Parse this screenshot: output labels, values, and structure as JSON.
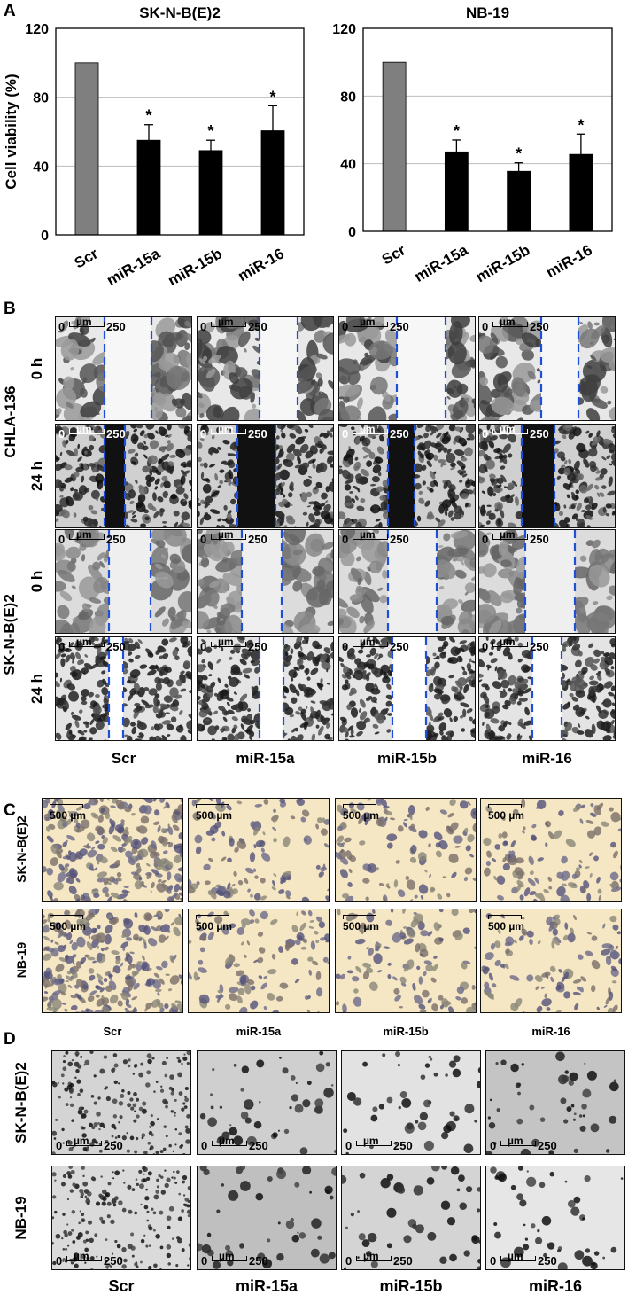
{
  "panels": {
    "A": "A",
    "B": "B",
    "C": "C",
    "D": "D"
  },
  "chart_data": [
    {
      "type": "bar",
      "title": "SK-N-B(E)2",
      "ylabel": "Cell viability (%)",
      "categories": [
        "Scr",
        "miR-15a",
        "miR-15b",
        "miR-16"
      ],
      "values": [
        100,
        55,
        49,
        60.5
      ],
      "errors": [
        0,
        9,
        6,
        14.5
      ],
      "significance": [
        "",
        "*",
        "*",
        "*"
      ],
      "yticks": [
        0,
        40,
        80,
        120
      ],
      "ylim": [
        0,
        120
      ],
      "colors": [
        "#7f7f7f",
        "#000000",
        "#000000",
        "#000000"
      ],
      "grid": true
    },
    {
      "type": "bar",
      "title": "NB-19",
      "ylabel": "",
      "categories": [
        "Scr",
        "miR-15a",
        "miR-15b",
        "miR-16"
      ],
      "values": [
        100,
        47,
        35.5,
        45.5
      ],
      "errors": [
        0,
        7,
        5,
        12
      ],
      "significance": [
        "",
        "*",
        "*",
        "*"
      ],
      "yticks": [
        0,
        40,
        80,
        120
      ],
      "ylim": [
        0,
        120
      ],
      "colors": [
        "#7f7f7f",
        "#000000",
        "#000000",
        "#000000"
      ],
      "grid": true
    }
  ],
  "panelB": {
    "cell_lines": [
      "CHLA-136",
      "SK-N-B(E)2"
    ],
    "times": [
      "0 h",
      "24 h"
    ],
    "columns": [
      "Scr",
      "miR-15a",
      "miR-15b",
      "miR-16"
    ],
    "scalebar": {
      "zero": "0",
      "unit": "µm",
      "value": "250"
    },
    "line_color": "#1f4fd8"
  },
  "panelC": {
    "rows": [
      "SK-N-B(E)2",
      "NB-19"
    ],
    "columns": [
      "Scr",
      "miR-15a",
      "miR-15b",
      "miR-16"
    ],
    "scalebar": "500 µm",
    "background_color": "#f5e6c4",
    "cell_color": "#6b6a8a"
  },
  "panelD": {
    "rows": [
      "SK-N-B(E)2",
      "NB-19"
    ],
    "columns": [
      "Scr",
      "miR-15a",
      "miR-15b",
      "miR-16"
    ],
    "scalebar": {
      "zero": "0",
      "unit": "µm",
      "value": "250"
    }
  }
}
